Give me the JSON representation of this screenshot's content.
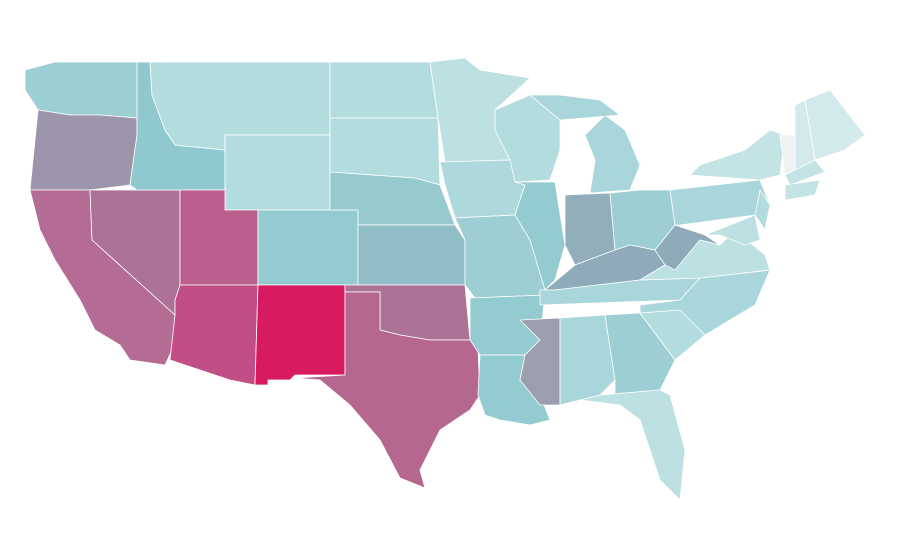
{
  "map": {
    "regions": [
      {
        "color": "#9ccfd3"
      },
      {
        "color": "#9c95ab"
      },
      {
        "color": "#b46b94"
      },
      {
        "color": "#ad7298"
      },
      {
        "color": "#8fc8cf"
      },
      {
        "color": "#b3dcdf"
      },
      {
        "color": "#b3dcdf"
      },
      {
        "color": "#bb5f8e"
      },
      {
        "color": "#c14f85"
      },
      {
        "color": "#93cbd0"
      },
      {
        "color": "#d81b60"
      },
      {
        "color": "#b3dcdf"
      },
      {
        "color": "#b3dcdf"
      },
      {
        "color": "#96cacf"
      },
      {
        "color": "#8fbec7"
      },
      {
        "color": "#ad7298"
      },
      {
        "color": "#b5678f"
      },
      {
        "color": "#bde0e3"
      },
      {
        "color": "#aed9dc"
      },
      {
        "color": "#9cced3"
      },
      {
        "color": "#93cbd0"
      },
      {
        "color": "#93cbd0"
      },
      {
        "color": "#b3dcdf"
      },
      {
        "color": "#93cbd0"
      },
      {
        "color": "#a9d6da"
      },
      {
        "color": "#a9d6da"
      },
      {
        "color": "#93aebb"
      },
      {
        "color": "#9cced3"
      },
      {
        "color": "#8fabb9"
      },
      {
        "color": "#a9d6da"
      },
      {
        "color": "#9c9eb0"
      },
      {
        "color": "#a9d6da"
      },
      {
        "color": "#9cced3"
      },
      {
        "color": "#bde0e3"
      },
      {
        "color": "#b3dcdf"
      },
      {
        "color": "#a9d6da"
      },
      {
        "color": "#bde0e3"
      },
      {
        "color": "#8fabb9"
      },
      {
        "color": "#a9d6da"
      },
      {
        "color": "#c3e3e5"
      },
      {
        "color": "#bde0e3"
      },
      {
        "color": "#b3dcdf"
      },
      {
        "color": "#eef2f3"
      },
      {
        "color": "#d2eaeb"
      },
      {
        "color": "#d2eaeb"
      },
      {
        "color": "#c3e3e5"
      },
      {
        "color": "#c3e3e5"
      }
    ]
  }
}
